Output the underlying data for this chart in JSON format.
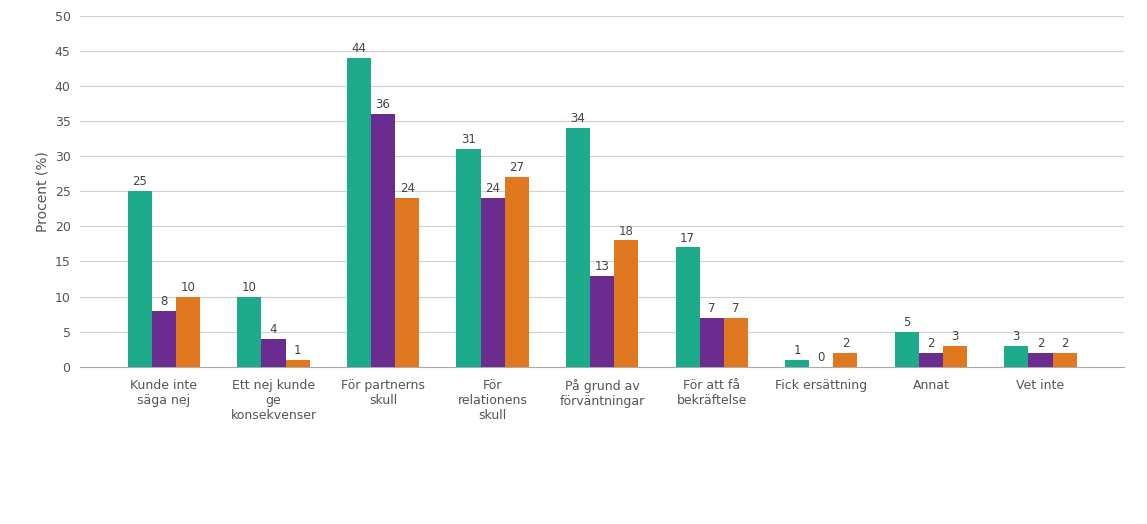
{
  "categories": [
    "Kunde inte\nsäga nej",
    "Ett nej kunde\nge\nkonsekvenser",
    "För partnerns\nskull",
    "För\nrelationens\nskull",
    "På grund av\nförväntningar",
    "För att få\nbekräftelse",
    "Fick ersättning",
    "Annat",
    "Vet inte"
  ],
  "series": {
    "Kvinna bisexuell": [
      25,
      10,
      44,
      31,
      34,
      17,
      1,
      5,
      3
    ],
    "Kvinna heterosexuell": [
      8,
      4,
      36,
      24,
      13,
      7,
      0,
      2,
      2
    ],
    "Kvinna homosexuell": [
      10,
      1,
      24,
      27,
      18,
      7,
      2,
      3,
      2
    ]
  },
  "colors": {
    "Kvinna bisexuell": "#1dab8b",
    "Kvinna heterosexuell": "#6a2d8f",
    "Kvinna homosexuell": "#e07820"
  },
  "ylabel": "Procent (%)",
  "ylim": [
    0,
    50
  ],
  "yticks": [
    0,
    5,
    10,
    15,
    20,
    25,
    30,
    35,
    40,
    45,
    50
  ],
  "bar_width": 0.22,
  "label_fontsize": 8.5,
  "tick_fontsize": 9,
  "legend_fontsize": 10,
  "ylabel_fontsize": 10,
  "background_color": "#ffffff",
  "grid_color": "#d0d0d0"
}
